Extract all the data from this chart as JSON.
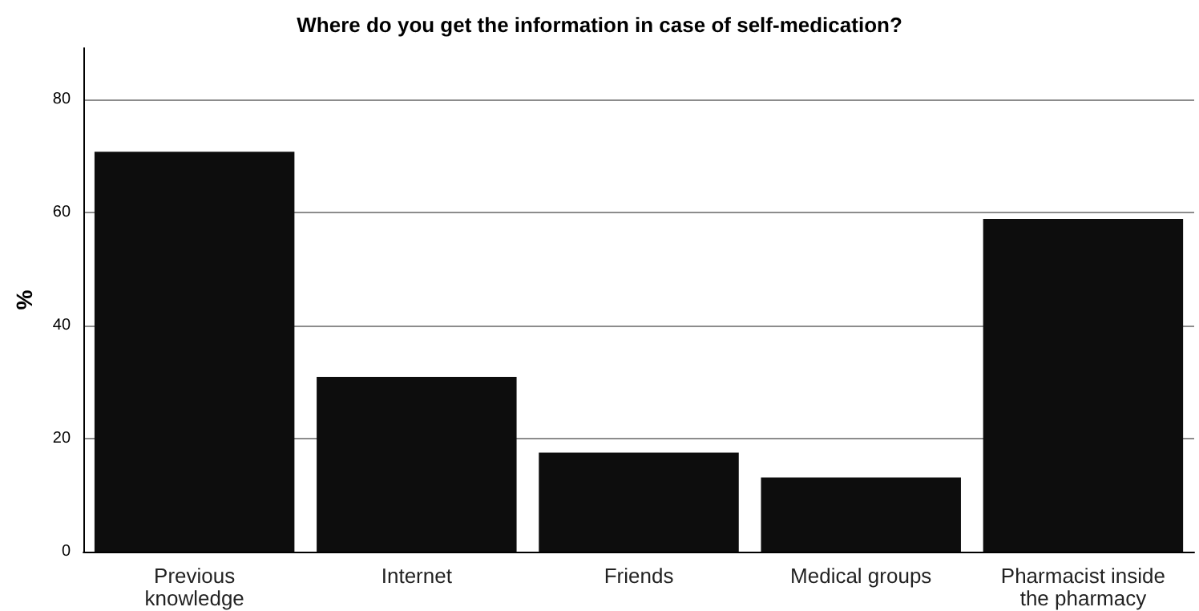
{
  "chart_data": {
    "type": "bar",
    "title": "Where do you get the information in case of self-medication?",
    "ylabel": "%",
    "categories": [
      "Previous\nknowledge",
      "Internet",
      "Friends",
      "Medical groups",
      "Pharmacist inside\nthe pharmacy"
    ],
    "values": [
      70.7,
      30.9,
      17.5,
      13.1,
      58.8
    ],
    "color": "#0d0d0d",
    "ylim": [
      0,
      89
    ],
    "yticks": [
      0,
      20,
      40,
      60,
      80
    ],
    "grid": "y"
  }
}
